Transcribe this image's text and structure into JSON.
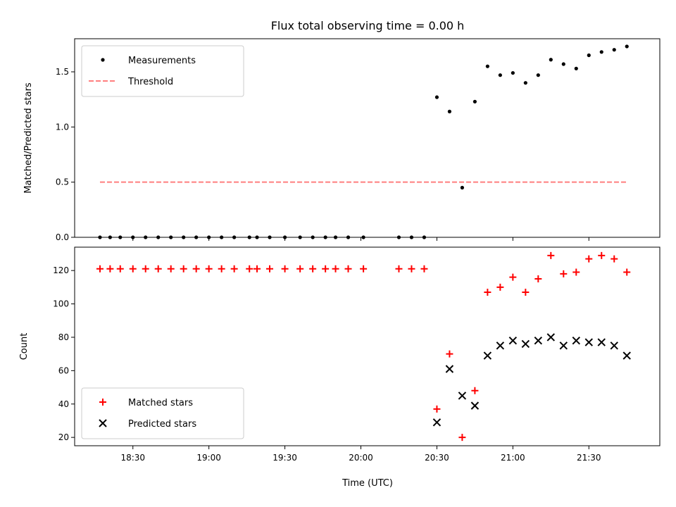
{
  "chart_data": [
    {
      "type": "scatter",
      "title": "Flux total observing time = 0.00 h",
      "xlabel": "",
      "ylabel": "Matched/Predicted stars",
      "ylim": [
        0,
        1.8
      ],
      "yticks": [
        0.0,
        0.5,
        1.0,
        1.5
      ],
      "ytick_labels": [
        "0.0",
        "0.5",
        "1.0",
        "1.5"
      ],
      "xlim": [
        "18:07",
        "21:58"
      ],
      "xticks": [
        "18:30",
        "19:00",
        "19:30",
        "20:00",
        "20:30",
        "21:00",
        "21:30"
      ],
      "legend_position": "top-left",
      "series": [
        {
          "name": "Measurements",
          "marker": "dot",
          "color": "#000000",
          "x": [
            "18:17",
            "18:21",
            "18:25",
            "18:30",
            "18:35",
            "18:40",
            "18:45",
            "18:50",
            "18:55",
            "19:00",
            "19:05",
            "19:10",
            "19:16",
            "19:19",
            "19:24",
            "19:30",
            "19:36",
            "19:41",
            "19:46",
            "19:50",
            "19:55",
            "20:01",
            "20:15",
            "20:20",
            "20:25",
            "20:30",
            "20:35",
            "20:40",
            "20:45",
            "20:50",
            "20:55",
            "21:00",
            "21:05",
            "21:10",
            "21:15",
            "21:20",
            "21:25",
            "21:30",
            "21:35",
            "21:40",
            "21:45"
          ],
          "y": [
            0,
            0,
            0,
            0,
            0,
            0,
            0,
            0,
            0,
            0,
            0,
            0,
            0,
            0,
            0,
            0,
            0,
            0,
            0,
            0,
            0,
            0,
            0,
            0,
            0,
            1.27,
            1.14,
            0.45,
            1.23,
            1.55,
            1.47,
            1.49,
            1.4,
            1.47,
            1.61,
            1.57,
            1.53,
            1.65,
            1.68,
            1.7,
            1.73
          ]
        },
        {
          "name": "Threshold",
          "style": "dashed-line",
          "color": "#ff7f7f",
          "x": [
            "18:17",
            "21:45"
          ],
          "y": [
            0.5,
            0.5
          ]
        }
      ]
    },
    {
      "type": "scatter",
      "title": "",
      "xlabel": "Time (UTC)",
      "ylabel": "Count",
      "ylim": [
        15,
        134
      ],
      "yticks": [
        20,
        40,
        60,
        80,
        100,
        120
      ],
      "ytick_labels": [
        "20",
        "40",
        "60",
        "80",
        "100",
        "120"
      ],
      "xlim": [
        "18:07",
        "21:58"
      ],
      "xticks": [
        "18:30",
        "19:00",
        "19:30",
        "20:00",
        "20:30",
        "21:00",
        "21:30"
      ],
      "xtick_labels": [
        "18:30",
        "19:00",
        "19:30",
        "20:00",
        "20:30",
        "21:00",
        "21:30"
      ],
      "legend_position": "bottom-left",
      "series": [
        {
          "name": "Matched stars",
          "marker": "plus",
          "color": "#ff0000",
          "x": [
            "18:17",
            "18:21",
            "18:25",
            "18:30",
            "18:35",
            "18:40",
            "18:45",
            "18:50",
            "18:55",
            "19:00",
            "19:05",
            "19:10",
            "19:16",
            "19:19",
            "19:24",
            "19:30",
            "19:36",
            "19:41",
            "19:46",
            "19:50",
            "19:55",
            "20:01",
            "20:15",
            "20:20",
            "20:25",
            "20:30",
            "20:35",
            "20:40",
            "20:45",
            "20:50",
            "20:55",
            "21:00",
            "21:05",
            "21:10",
            "21:15",
            "21:20",
            "21:25",
            "21:30",
            "21:35",
            "21:40",
            "21:45"
          ],
          "y": [
            121,
            121,
            121,
            121,
            121,
            121,
            121,
            121,
            121,
            121,
            121,
            121,
            121,
            121,
            121,
            121,
            121,
            121,
            121,
            121,
            121,
            121,
            121,
            121,
            121,
            37,
            70,
            20,
            48,
            107,
            110,
            116,
            107,
            115,
            129,
            118,
            119,
            127,
            129,
            127,
            119
          ]
        },
        {
          "name": "Predicted stars",
          "marker": "x",
          "color": "#000000",
          "x": [
            "20:30",
            "20:35",
            "20:40",
            "20:45",
            "20:50",
            "20:55",
            "21:00",
            "21:05",
            "21:10",
            "21:15",
            "21:20",
            "21:25",
            "21:30",
            "21:35",
            "21:40",
            "21:45"
          ],
          "y": [
            29,
            61,
            45,
            39,
            69,
            75,
            78,
            76,
            78,
            80,
            75,
            78,
            77,
            77,
            75,
            69
          ]
        }
      ]
    }
  ]
}
